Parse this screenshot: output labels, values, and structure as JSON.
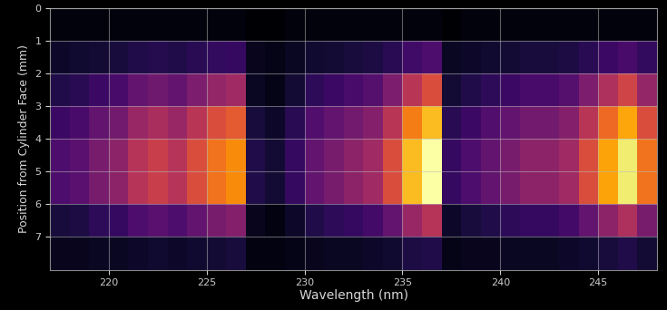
{
  "chart_data": {
    "type": "heatmap",
    "x_label": "Wavelength (nm)",
    "y_label": "Position from Cylinder Face (mm)",
    "xlim": [
      217,
      248
    ],
    "ylim": [
      8,
      0
    ],
    "xticks": [
      220,
      225,
      230,
      235,
      240,
      245
    ],
    "yticks": [
      0,
      1,
      2,
      3,
      4,
      5,
      6,
      7
    ],
    "grid": true,
    "x_edges": [
      217,
      218,
      219,
      220,
      221,
      222,
      223,
      224,
      225,
      226,
      227,
      228,
      229,
      230,
      231,
      232,
      233,
      234,
      235,
      236,
      237,
      238,
      239,
      240,
      241,
      242,
      243,
      244,
      245,
      246,
      247,
      248
    ],
    "y_edges": [
      0,
      1,
      2,
      3,
      4,
      5,
      6,
      7,
      8
    ],
    "cells": [
      [
        0.05,
        0.05,
        0.05,
        0.05,
        0.05,
        0.05,
        0.05,
        0.05,
        0.05,
        0.05,
        0.03,
        0.03,
        0.05,
        0.05,
        0.05,
        0.05,
        0.05,
        0.05,
        0.05,
        0.05,
        0.03,
        0.05,
        0.05,
        0.05,
        0.05,
        0.05,
        0.05,
        0.05,
        0.05,
        0.05,
        0.05
      ],
      [
        0.1,
        0.11,
        0.12,
        0.13,
        0.15,
        0.16,
        0.15,
        0.17,
        0.19,
        0.2,
        0.08,
        0.07,
        0.09,
        0.11,
        0.12,
        0.13,
        0.14,
        0.17,
        0.22,
        0.25,
        0.09,
        0.1,
        0.11,
        0.12,
        0.13,
        0.13,
        0.14,
        0.17,
        0.21,
        0.24,
        0.19
      ],
      [
        0.15,
        0.17,
        0.21,
        0.24,
        0.3,
        0.33,
        0.3,
        0.36,
        0.42,
        0.45,
        0.09,
        0.07,
        0.12,
        0.18,
        0.21,
        0.24,
        0.27,
        0.36,
        0.51,
        0.6,
        0.12,
        0.15,
        0.18,
        0.21,
        0.24,
        0.24,
        0.27,
        0.36,
        0.48,
        0.57,
        0.42
      ],
      [
        0.21,
        0.24,
        0.3,
        0.34,
        0.43,
        0.47,
        0.43,
        0.51,
        0.6,
        0.64,
        0.13,
        0.1,
        0.17,
        0.26,
        0.3,
        0.34,
        0.38,
        0.51,
        0.72,
        0.85,
        0.17,
        0.21,
        0.26,
        0.3,
        0.34,
        0.34,
        0.38,
        0.51,
        0.68,
        0.81,
        0.6
      ],
      [
        0.25,
        0.28,
        0.35,
        0.4,
        0.5,
        0.55,
        0.5,
        0.6,
        0.7,
        0.75,
        0.15,
        0.12,
        0.2,
        0.3,
        0.35,
        0.4,
        0.45,
        0.6,
        0.85,
        1.0,
        0.2,
        0.25,
        0.3,
        0.35,
        0.4,
        0.4,
        0.45,
        0.6,
        0.8,
        0.95,
        0.7
      ],
      [
        0.25,
        0.28,
        0.35,
        0.4,
        0.5,
        0.55,
        0.5,
        0.6,
        0.7,
        0.75,
        0.15,
        0.12,
        0.2,
        0.3,
        0.35,
        0.4,
        0.45,
        0.6,
        0.85,
        1.0,
        0.2,
        0.25,
        0.3,
        0.35,
        0.4,
        0.4,
        0.45,
        0.6,
        0.8,
        0.95,
        0.7
      ],
      [
        0.13,
        0.14,
        0.18,
        0.2,
        0.25,
        0.28,
        0.25,
        0.3,
        0.35,
        0.38,
        0.08,
        0.06,
        0.1,
        0.15,
        0.18,
        0.2,
        0.23,
        0.3,
        0.43,
        0.5,
        0.1,
        0.13,
        0.15,
        0.18,
        0.2,
        0.2,
        0.23,
        0.3,
        0.4,
        0.48,
        0.35
      ],
      [
        0.08,
        0.08,
        0.09,
        0.09,
        0.1,
        0.11,
        0.1,
        0.11,
        0.12,
        0.13,
        0.06,
        0.06,
        0.07,
        0.08,
        0.09,
        0.09,
        0.1,
        0.11,
        0.14,
        0.15,
        0.07,
        0.08,
        0.08,
        0.09,
        0.09,
        0.09,
        0.1,
        0.11,
        0.13,
        0.15,
        0.12
      ]
    ]
  }
}
